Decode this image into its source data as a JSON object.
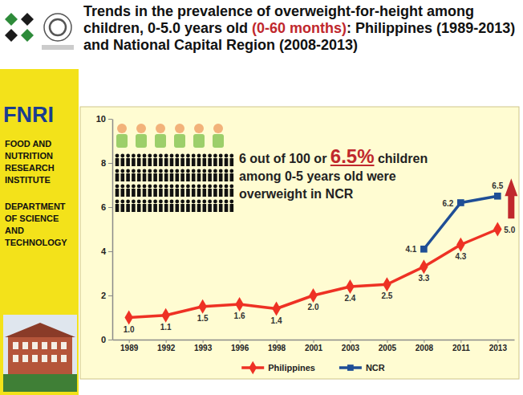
{
  "chart_data": {
    "type": "line",
    "title": [
      "Trends in the prevalence of overweight-for-height among children, 0-5.0 years old ",
      "(0-60 months)",
      ": Philippines (1989-2013) and National Capital Region (2008-2013)"
    ],
    "annotation": [
      "6 out of 100 or ",
      "6.5%",
      " children among 0-5 years old were overweight in NCR"
    ],
    "categories": [
      "1989",
      "1992",
      "1993",
      "1996",
      "1998",
      "2001",
      "2003",
      "2005",
      "2008",
      "2011",
      "2013"
    ],
    "series": [
      {
        "name": "Philippines",
        "color": "#ee3124",
        "marker": "diamond",
        "line_style": "solid",
        "values": [
          1.0,
          1.1,
          1.5,
          1.6,
          1.4,
          2.0,
          2.4,
          2.5,
          3.3,
          4.3,
          5.0
        ],
        "value_labels": [
          "1.0",
          "1.1",
          "1.5",
          "1.6",
          "1.4",
          "2.0",
          "2.4",
          "2.5",
          "3.3",
          "4.3",
          "5.0"
        ]
      },
      {
        "name": "NCR",
        "color": "#1f4e96",
        "marker": "square",
        "line_style": "solid",
        "values": [
          null,
          null,
          null,
          null,
          null,
          null,
          null,
          null,
          4.1,
          6.2,
          6.5
        ],
        "value_labels": [
          null,
          null,
          null,
          null,
          null,
          null,
          null,
          null,
          "4.1",
          "6.2",
          "6.5"
        ]
      }
    ],
    "ylim": [
      0,
      10
    ],
    "yticks": [
      0,
      2,
      4,
      6,
      8,
      10
    ],
    "grid": false,
    "legend": "bottom",
    "data_labels": true
  },
  "sidebar": {
    "acronym": "FNRI",
    "institute": "FOOD AND NUTRITION RESEARCH INSTITUTE",
    "department": "DEPARTMENT OF SCIENCE AND TECHNOLOGY"
  }
}
